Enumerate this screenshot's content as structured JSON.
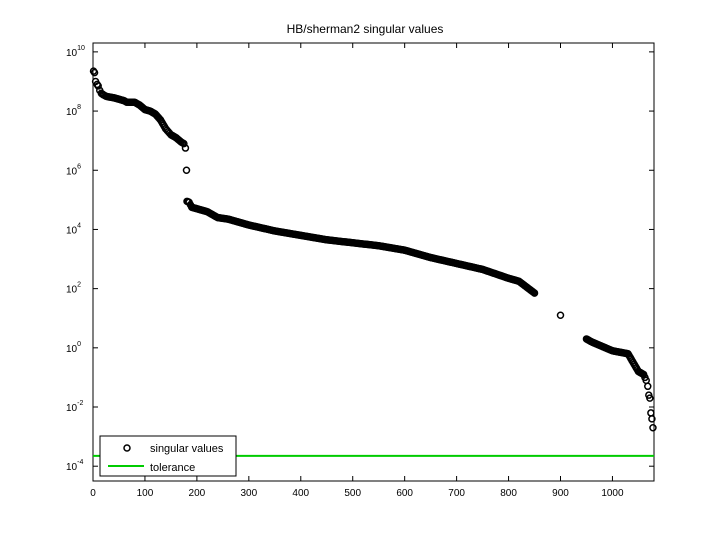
{
  "chart_data": {
    "type": "scatter",
    "title": "HB/sherman2 singular values",
    "xlabel": "",
    "ylabel": "",
    "xlim": [
      0,
      1080
    ],
    "ylim_log10": [
      -4.5,
      10.3
    ],
    "yscale": "log",
    "grid": false,
    "legend_position": "bottom-left",
    "x_ticks": [
      0,
      100,
      200,
      300,
      400,
      500,
      600,
      700,
      800,
      900,
      1000
    ],
    "y_ticks": [
      {
        "base": "10",
        "exp": "10",
        "value": 10
      },
      {
        "base": "10",
        "exp": "8",
        "value": 8
      },
      {
        "base": "10",
        "exp": "6",
        "value": 6
      },
      {
        "base": "10",
        "exp": "4",
        "value": 4
      },
      {
        "base": "10",
        "exp": "2",
        "value": 2
      },
      {
        "base": "10",
        "exp": "0",
        "value": 0
      },
      {
        "base": "10",
        "exp": "-2",
        "value": -2
      },
      {
        "base": "10",
        "exp": "-4",
        "value": -4
      }
    ],
    "series": [
      {
        "name": "singular values",
        "marker": "circle",
        "color": "#000000",
        "x": [
          1,
          3,
          5,
          8,
          10,
          13,
          16,
          20,
          25,
          30,
          40,
          50,
          60,
          65,
          70,
          80,
          90,
          100,
          110,
          120,
          130,
          140,
          145,
          150,
          160,
          170,
          175,
          178,
          180,
          181,
          185,
          190,
          200,
          220,
          240,
          260,
          300,
          350,
          400,
          450,
          500,
          550,
          600,
          650,
          700,
          750,
          800,
          820,
          850,
          900,
          950,
          960,
          1000,
          1030,
          1050,
          1060,
          1065,
          1068,
          1070,
          1072,
          1074,
          1076,
          1078
        ],
        "y_log10": [
          9.35,
          9.3,
          9.0,
          8.9,
          8.85,
          8.7,
          8.6,
          8.55,
          8.5,
          8.48,
          8.45,
          8.4,
          8.35,
          8.3,
          8.3,
          8.3,
          8.2,
          8.05,
          8.0,
          7.9,
          7.7,
          7.4,
          7.3,
          7.2,
          7.1,
          6.95,
          6.9,
          6.75,
          6.0,
          4.95,
          4.92,
          4.75,
          4.7,
          4.6,
          4.4,
          4.35,
          4.15,
          3.95,
          3.8,
          3.65,
          3.55,
          3.45,
          3.3,
          3.05,
          2.85,
          2.65,
          2.35,
          2.25,
          1.85,
          1.1,
          0.3,
          0.2,
          -0.1,
          -0.2,
          -0.8,
          -0.9,
          -1.1,
          -1.3,
          -1.6,
          -1.7,
          -2.2,
          -2.4,
          -2.7
        ]
      },
      {
        "name": "tolerance",
        "marker": "line",
        "color": "#00cc00",
        "x": [
          0,
          1080
        ],
        "y_log10": [
          -3.65,
          -3.65
        ]
      }
    ]
  }
}
